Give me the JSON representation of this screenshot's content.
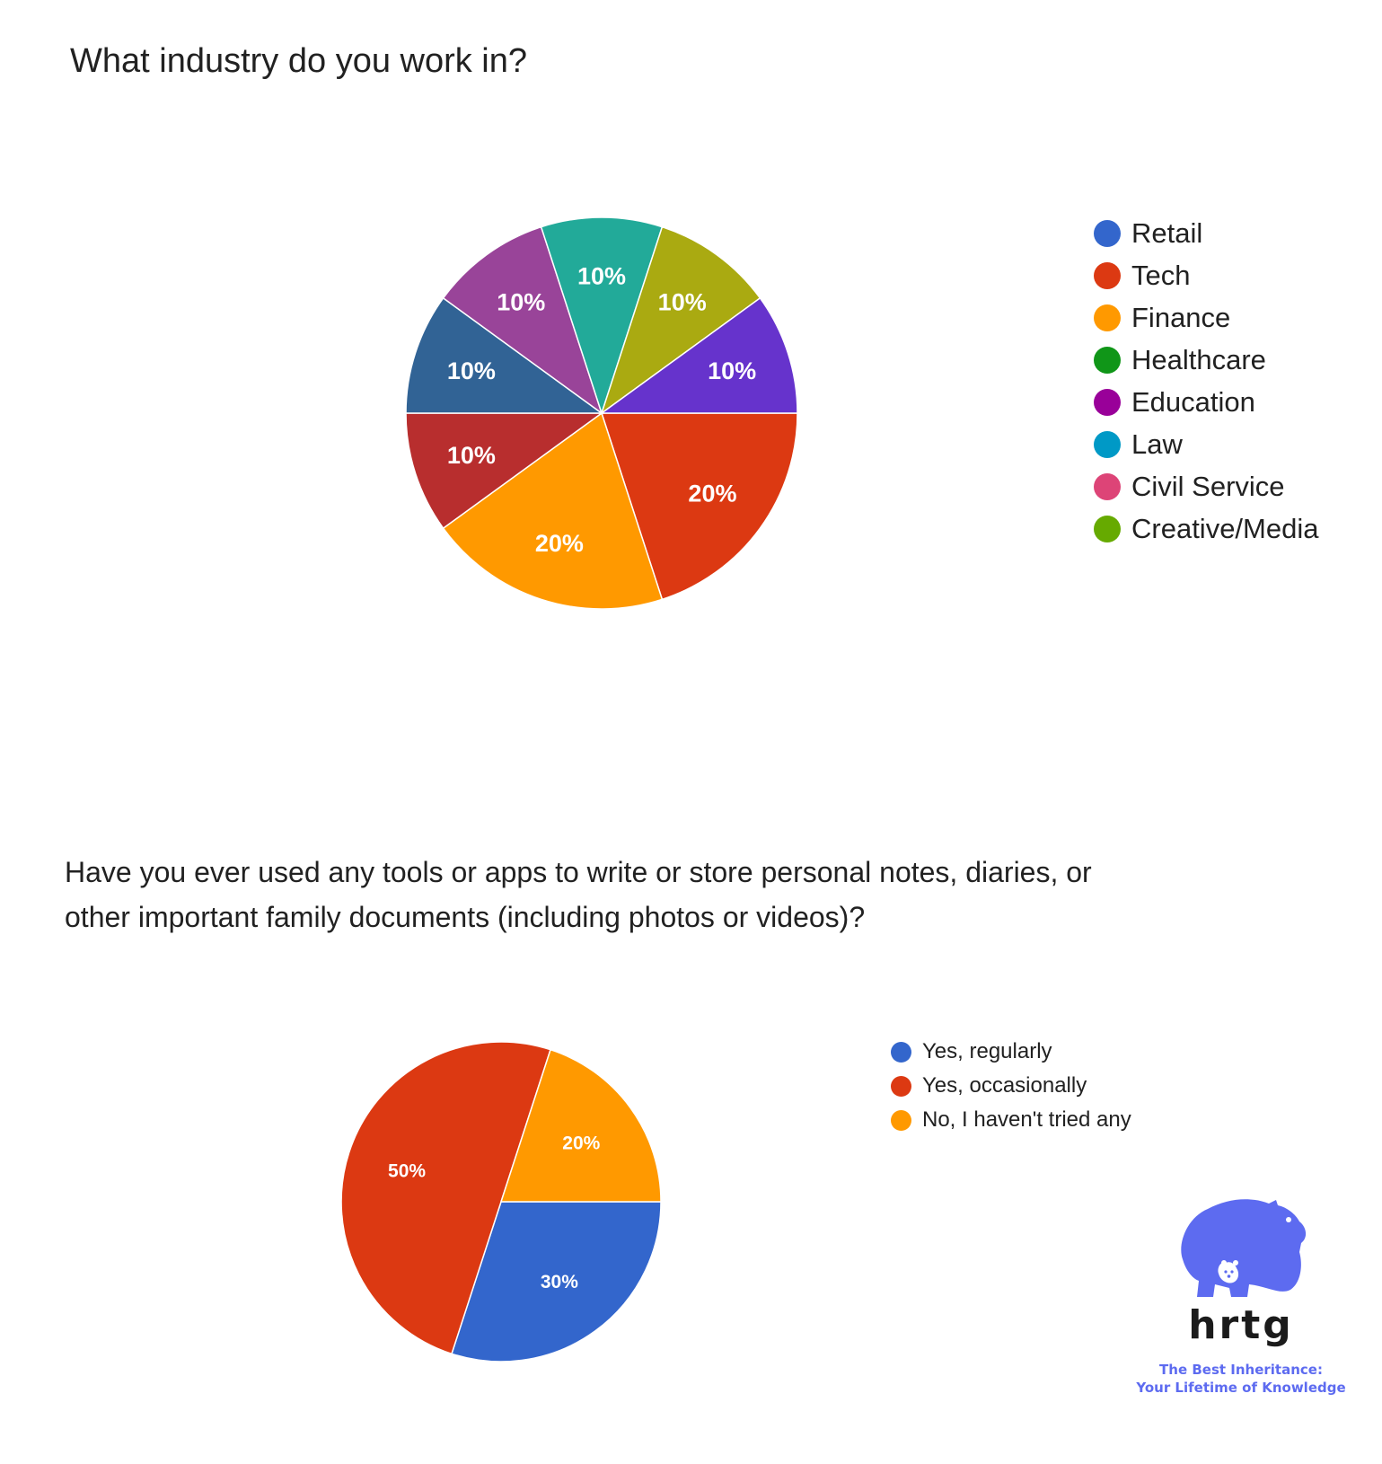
{
  "chart_data": [
    {
      "type": "pie",
      "title": "What industry do you work in?",
      "legend_position": "right",
      "legend": [
        {
          "label": "Retail",
          "color": "#3366cc"
        },
        {
          "label": "Tech",
          "color": "#dc3912"
        },
        {
          "label": "Finance",
          "color": "#ff9900"
        },
        {
          "label": "Healthcare",
          "color": "#109618"
        },
        {
          "label": "Education",
          "color": "#990099"
        },
        {
          "label": "Law",
          "color": "#0099c6"
        },
        {
          "label": "Civil Service",
          "color": "#dd4477"
        },
        {
          "label": "Creative/Media",
          "color": "#66aa00"
        }
      ],
      "slices": [
        {
          "value": 20,
          "label": "20%",
          "color": "#dc3912"
        },
        {
          "value": 20,
          "label": "20%",
          "color": "#ff9900"
        },
        {
          "value": 10,
          "label": "10%",
          "color": "#b82e2e"
        },
        {
          "value": 10,
          "label": "10%",
          "color": "#316395"
        },
        {
          "value": 10,
          "label": "10%",
          "color": "#994499"
        },
        {
          "value": 10,
          "label": "10%",
          "color": "#22aa99"
        },
        {
          "value": 10,
          "label": "10%",
          "color": "#aaaa11"
        },
        {
          "value": 10,
          "label": "10%",
          "color": "#6633cc"
        }
      ]
    },
    {
      "type": "pie",
      "title": "Have you ever used any tools or apps to write or store personal notes, diaries, or other important family documents (including photos or videos)?",
      "legend_position": "top-right",
      "legend": [
        {
          "label": "Yes, regularly",
          "color": "#3366cc"
        },
        {
          "label": "Yes, occasionally",
          "color": "#dc3912"
        },
        {
          "label": "No, I haven't tried any",
          "color": "#ff9900"
        }
      ],
      "slices": [
        {
          "value": 30,
          "label": "30%",
          "color": "#3366cc"
        },
        {
          "value": 50,
          "label": "50%",
          "color": "#dc3912"
        },
        {
          "value": 20,
          "label": "20%",
          "color": "#ff9900"
        }
      ]
    }
  ],
  "brand": {
    "name": "hrtg",
    "tagline_line1": "The Best Inheritance:",
    "tagline_line2": "Your Lifetime of Knowledge",
    "color": "#5d6bf0"
  }
}
